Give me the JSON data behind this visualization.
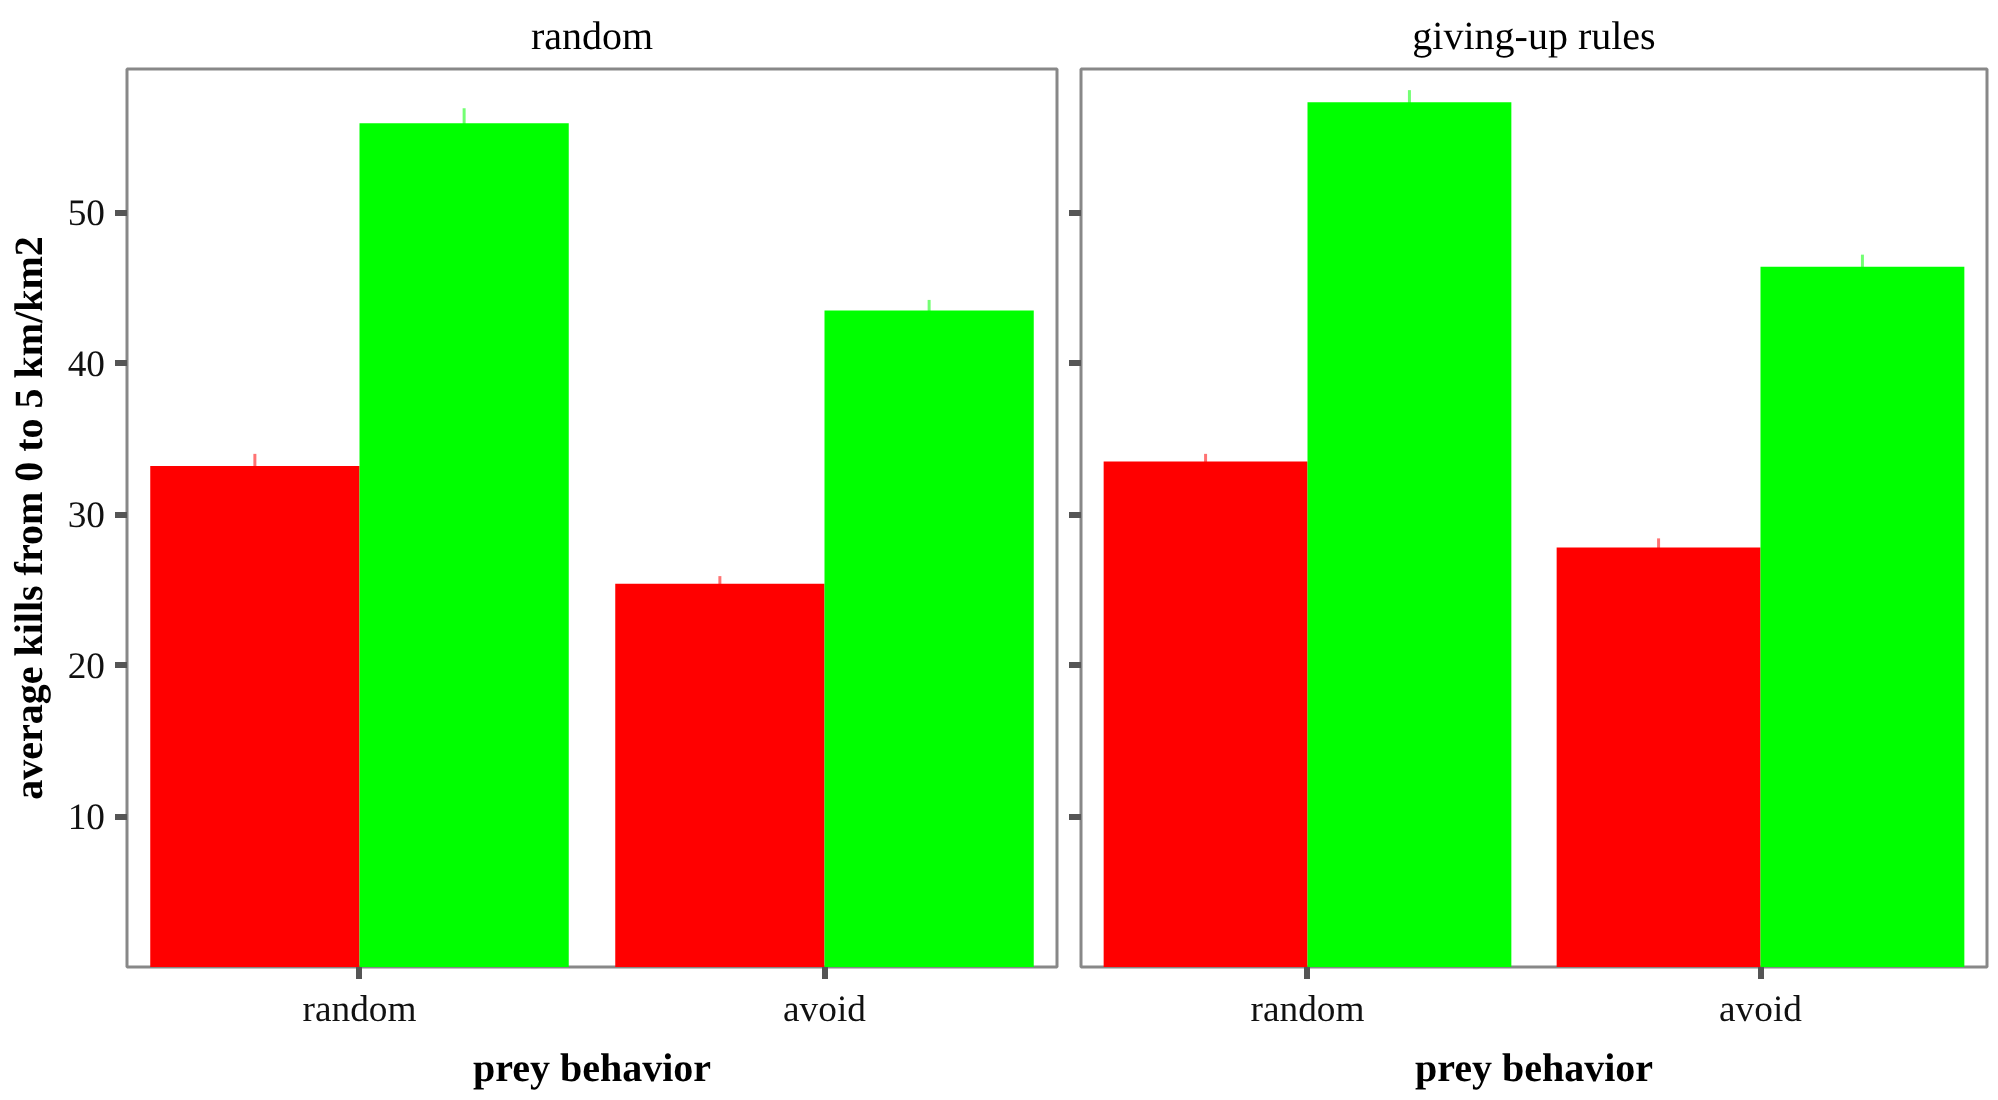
{
  "chart_data": [
    {
      "type": "bar",
      "title": "random",
      "xlabel": "prey behavior",
      "ylabel": "average kills from 0 to 5 km/km2",
      "categories": [
        "random",
        "avoid"
      ],
      "ylim": [
        0,
        59.5
      ],
      "yticks": [
        10,
        20,
        30,
        40,
        50
      ],
      "grid": false,
      "series": [
        {
          "color": "#ff0000",
          "values": [
            33.2,
            25.4
          ],
          "errors": [
            0.8,
            0.5
          ]
        },
        {
          "color": "#00ff00",
          "values": [
            55.9,
            43.5
          ],
          "errors": [
            1.0,
            0.7
          ]
        }
      ]
    },
    {
      "type": "bar",
      "title": "giving-up rules",
      "xlabel": "prey behavior",
      "categories": [
        "random",
        "avoid"
      ],
      "ylim": [
        0,
        59.5
      ],
      "yticks": [
        10,
        20,
        30,
        40,
        50
      ],
      "tick_labels": "x",
      "grid": false,
      "series": [
        {
          "color": "#ff0000",
          "values": [
            33.5,
            27.8
          ],
          "errors": [
            0.5,
            0.6
          ]
        },
        {
          "color": "#00ff00",
          "values": [
            57.3,
            46.4
          ],
          "errors": [
            0.8,
            0.8
          ]
        }
      ]
    }
  ]
}
